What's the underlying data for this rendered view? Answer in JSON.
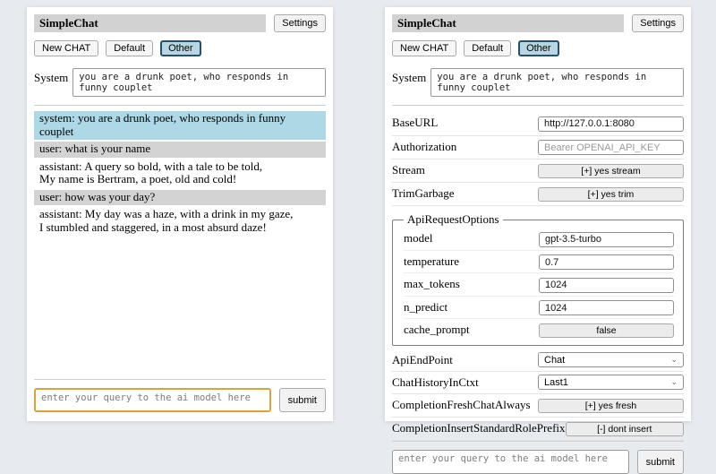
{
  "header": {
    "title": "SimpleChat",
    "settings_label": "Settings",
    "sessions": [
      "New CHAT",
      "Default",
      "Other"
    ],
    "active_session": "Other",
    "system_label": "System",
    "system_prompt": "you are a drunk poet, who responds in funny couplet"
  },
  "query": {
    "placeholder": "enter your query to the ai model here",
    "submit_label": "submit"
  },
  "chat": {
    "messages": [
      {
        "role": "system",
        "text": "system: you are a drunk poet, who responds in funny couplet"
      },
      {
        "role": "user",
        "text": "user: what is your name"
      },
      {
        "role": "assistant",
        "text": "assistant: A query so bold, with a tale to be told,\nMy name is Bertram, a poet, old and cold!"
      },
      {
        "role": "user",
        "text": "user: how was your day?"
      },
      {
        "role": "assistant",
        "text": "assistant: My day was a haze, with a drink in my gaze,\nI stumbled and staggered, in a most absurd daze!"
      }
    ]
  },
  "settings": {
    "base_url": {
      "label": "BaseURL",
      "value": "http://127.0.0.1:8080"
    },
    "authorization": {
      "label": "Authorization",
      "placeholder": "Bearer OPENAI_API_KEY"
    },
    "stream": {
      "label": "Stream",
      "value": "[+] yes stream"
    },
    "trim_garbage": {
      "label": "TrimGarbage",
      "value": "[+] yes trim"
    },
    "api_request_options": {
      "legend": "ApiRequestOptions",
      "model": {
        "label": "model",
        "value": "gpt-3.5-turbo"
      },
      "temperature": {
        "label": "temperature",
        "value": "0.7"
      },
      "max_tokens": {
        "label": "max_tokens",
        "value": "1024"
      },
      "n_predict": {
        "label": "n_predict",
        "value": "1024"
      },
      "cache_prompt": {
        "label": "cache_prompt",
        "value": "false"
      }
    },
    "api_endpoint": {
      "label": "ApiEndPoint",
      "value": "Chat"
    },
    "chat_history_in_ctxt": {
      "label": "ChatHistoryInCtxt",
      "value": "Last1"
    },
    "completion_fresh_chat_always": {
      "label": "CompletionFreshChatAlways",
      "value": "[+] yes fresh"
    },
    "completion_insert_standard_role_prefix": {
      "label": "CompletionInsertStandardRolePrefix",
      "value": "[-] dont insert"
    }
  },
  "colors": {
    "page_bg": "#e7ebf0",
    "titlebar_bg": "#d2d2d2",
    "active_session_bg": "#b7d6e2",
    "active_session_border": "#23506e",
    "chat_system_bg": "#add8e6",
    "chat_user_bg": "#d3d3d3",
    "query_highlight_border": "#d9a43c"
  }
}
